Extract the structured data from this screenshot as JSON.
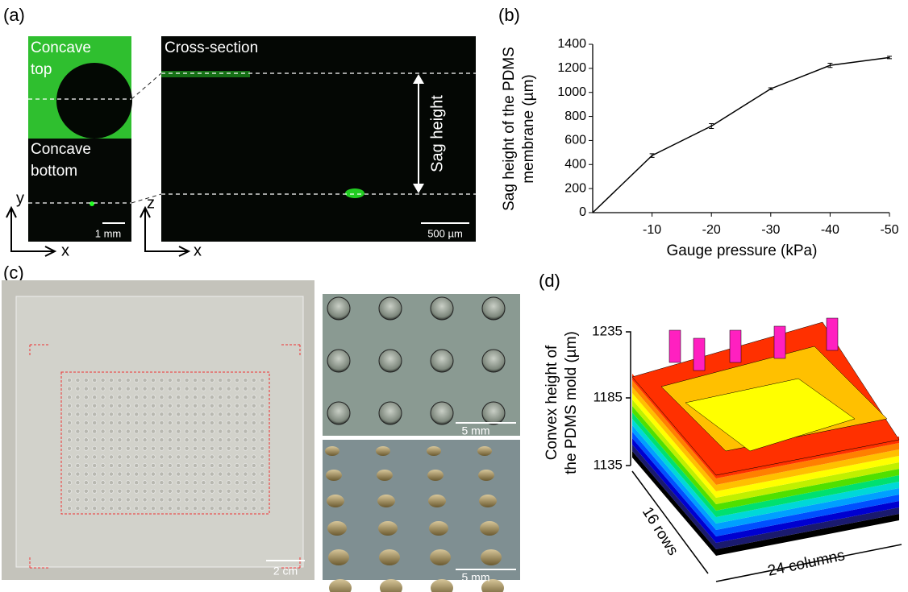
{
  "panel_a": {
    "label": "(a)",
    "top_text": [
      "Concave",
      "top"
    ],
    "bottom_text": [
      "Concave",
      "bottom"
    ],
    "cross_section": "Cross-section",
    "sag_height": "Sag height",
    "scale_left": "1 mm",
    "scale_right": "500 µm",
    "axes_left": [
      "y",
      "x"
    ],
    "axes_right": [
      "z",
      "x"
    ]
  },
  "chart_data": {
    "type": "line",
    "label": "(b)",
    "x_label": "Gauge pressure (kPa)",
    "y_label": [
      "Sag height of the PDMS",
      "membrane (µm)"
    ],
    "x": [
      0,
      -10,
      -20,
      -30,
      -40,
      -50
    ],
    "series": [
      {
        "color": "#000000",
        "values": [
          0,
          475,
          720,
          1030,
          1225,
          1290
        ],
        "errors": [
          0,
          15,
          20,
          8,
          18,
          10
        ]
      }
    ],
    "xlim": [
      0,
      -50
    ],
    "xticks": [
      -10,
      -20,
      -30,
      -40,
      -50
    ],
    "ylim": [
      0,
      1400
    ],
    "yticks": [
      0,
      200,
      400,
      600,
      800,
      1000,
      1200,
      1400
    ]
  },
  "panel_c": {
    "label": "(c)",
    "scale_main": "2 cm",
    "scale_top": "5 mm",
    "scale_bottom": "5 mm"
  },
  "panel_d": {
    "label": "(d)",
    "y_label": [
      "Convex height of",
      "the PDMS mold (µm)"
    ],
    "y_ticks": [
      "1235",
      "1185",
      "1135"
    ],
    "rows": "16 rows",
    "columns": "24 columns"
  }
}
